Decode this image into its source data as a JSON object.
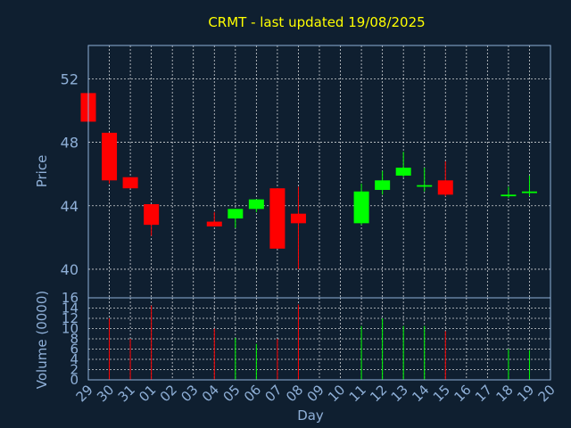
{
  "chart_data": [
    {
      "type": "candlestick",
      "title": "CRMT - last updated 19/08/2025",
      "ylabel": "Price",
      "ylim": [
        38.2,
        54.1
      ],
      "yticks": [
        40,
        44,
        48,
        52
      ],
      "x_categories": [
        "29",
        "30",
        "31",
        "01",
        "02",
        "03",
        "04",
        "05",
        "06",
        "07",
        "08",
        "09",
        "10",
        "11",
        "12",
        "13",
        "14",
        "15",
        "16",
        "17",
        "18",
        "19",
        "20"
      ],
      "grid": true,
      "up_color": "#00ff00",
      "down_color": "#ff0000",
      "candles": [
        {
          "day": "29",
          "open": 51.1,
          "high": 51.1,
          "low": 49.3,
          "close": 49.3
        },
        {
          "day": "30",
          "open": 48.6,
          "high": 48.6,
          "low": 45.4,
          "close": 45.6
        },
        {
          "day": "31",
          "open": 45.8,
          "high": 45.8,
          "low": 45.1,
          "close": 45.1
        },
        {
          "day": "01",
          "open": 44.1,
          "high": 44.1,
          "low": 42.1,
          "close": 42.8
        },
        {
          "day": "04",
          "open": 43.0,
          "high": 43.6,
          "low": 42.7,
          "close": 42.7
        },
        {
          "day": "05",
          "open": 43.2,
          "high": 43.8,
          "low": 42.6,
          "close": 43.8
        },
        {
          "day": "06",
          "open": 43.8,
          "high": 44.4,
          "low": 43.6,
          "close": 44.4
        },
        {
          "day": "07",
          "open": 45.1,
          "high": 45.1,
          "low": 41.3,
          "close": 41.3
        },
        {
          "day": "08",
          "open": 43.5,
          "high": 45.2,
          "low": 40.0,
          "close": 42.9
        },
        {
          "day": "11",
          "open": 42.9,
          "high": 45.4,
          "low": 42.8,
          "close": 44.9
        },
        {
          "day": "12",
          "open": 45.0,
          "high": 46.2,
          "low": 44.7,
          "close": 45.6
        },
        {
          "day": "13",
          "open": 45.9,
          "high": 47.4,
          "low": 45.8,
          "close": 46.4
        },
        {
          "day": "14",
          "open": 45.2,
          "high": 46.4,
          "low": 44.9,
          "close": 45.3
        },
        {
          "day": "15",
          "open": 45.6,
          "high": 46.8,
          "low": 44.6,
          "close": 44.7
        },
        {
          "day": "18",
          "open": 44.6,
          "high": 45.2,
          "low": 44.5,
          "close": 44.7
        },
        {
          "day": "19",
          "open": 44.8,
          "high": 45.9,
          "low": 44.6,
          "close": 44.9
        }
      ]
    },
    {
      "type": "bar",
      "ylabel": "Volume (0000)",
      "xlabel": "Day",
      "ylim": [
        0,
        16
      ],
      "yticks": [
        0,
        2,
        4,
        6,
        8,
        10,
        12,
        14,
        16
      ],
      "x_categories": [
        "29",
        "30",
        "31",
        "01",
        "02",
        "03",
        "04",
        "05",
        "06",
        "07",
        "08",
        "09",
        "10",
        "11",
        "12",
        "13",
        "14",
        "15",
        "16",
        "17",
        "18",
        "19",
        "20"
      ],
      "bars": [
        {
          "day": "30",
          "value": 12.0,
          "color": "#ff0000"
        },
        {
          "day": "31",
          "value": 8.0,
          "color": "#ff0000"
        },
        {
          "day": "01",
          "value": 14.5,
          "color": "#ff0000"
        },
        {
          "day": "04",
          "value": 10.0,
          "color": "#ff0000"
        },
        {
          "day": "05",
          "value": 8.2,
          "color": "#00ff00"
        },
        {
          "day": "06",
          "value": 7.0,
          "color": "#00ff00"
        },
        {
          "day": "07",
          "value": 8.0,
          "color": "#ff0000"
        },
        {
          "day": "08",
          "value": 14.7,
          "color": "#ff0000"
        },
        {
          "day": "11",
          "value": 10.5,
          "color": "#00ff00"
        },
        {
          "day": "12",
          "value": 12.0,
          "color": "#00ff00"
        },
        {
          "day": "13",
          "value": 10.5,
          "color": "#00ff00"
        },
        {
          "day": "14",
          "value": 10.5,
          "color": "#00ff00"
        },
        {
          "day": "15",
          "value": 9.5,
          "color": "#ff0000"
        },
        {
          "day": "18",
          "value": 6.0,
          "color": "#00ff00"
        },
        {
          "day": "19",
          "value": 5.8,
          "color": "#00ff00"
        }
      ]
    }
  ],
  "colors": {
    "background": "#0f1f30",
    "title": "#ffff00",
    "axis_text": "#8fb0d8",
    "grid": "#ffffff",
    "frame": "#8fb0d8"
  }
}
